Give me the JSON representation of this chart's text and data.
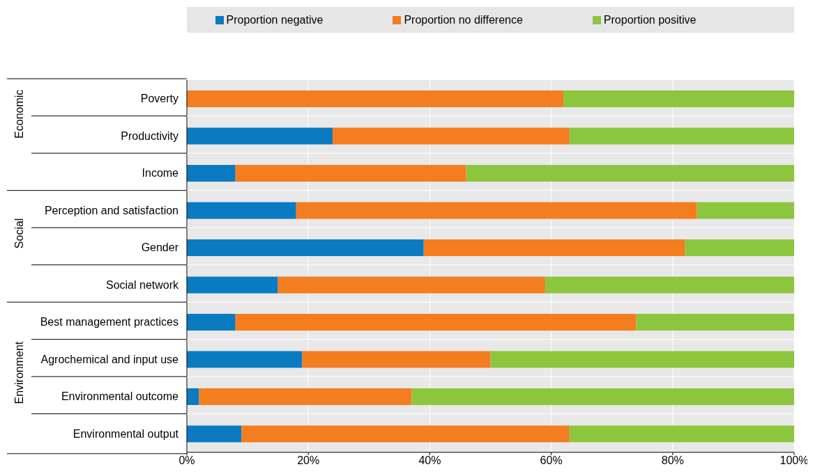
{
  "chart_data": {
    "type": "bar",
    "orientation": "horizontal",
    "stacked": true,
    "categories": [
      "Poverty",
      "Productivity",
      "Income",
      "Perception and satisfaction",
      "Gender",
      "Social network",
      "Best management practices",
      "Agrochemical and input use",
      "Environmental outcome",
      "Environmental output"
    ],
    "series": [
      {
        "name": "Proportion negative",
        "color": "#0a7bc1",
        "values": [
          0,
          24,
          8,
          18,
          39,
          15,
          8,
          19,
          2,
          9
        ]
      },
      {
        "name": "Proportion no difference",
        "color": "#f47d20",
        "values": [
          62,
          39,
          38,
          66,
          43,
          44,
          66,
          31,
          35,
          54
        ]
      },
      {
        "name": "Proportion positive",
        "color": "#8cc63e",
        "values": [
          38,
          37,
          54,
          16,
          18,
          41,
          26,
          50,
          63,
          37
        ]
      }
    ],
    "xlim": [
      0,
      100
    ],
    "xticks": [
      {
        "value": 0,
        "label": "0%"
      },
      {
        "value": 20,
        "label": "20%"
      },
      {
        "value": 40,
        "label": "40%"
      },
      {
        "value": 60,
        "label": "60%"
      },
      {
        "value": 80,
        "label": "80%"
      },
      {
        "value": 100,
        "label": "100%"
      }
    ],
    "annotations": [
      "Economic",
      "Social",
      "Environment"
    ],
    "grid": "x",
    "legend": "top"
  }
}
